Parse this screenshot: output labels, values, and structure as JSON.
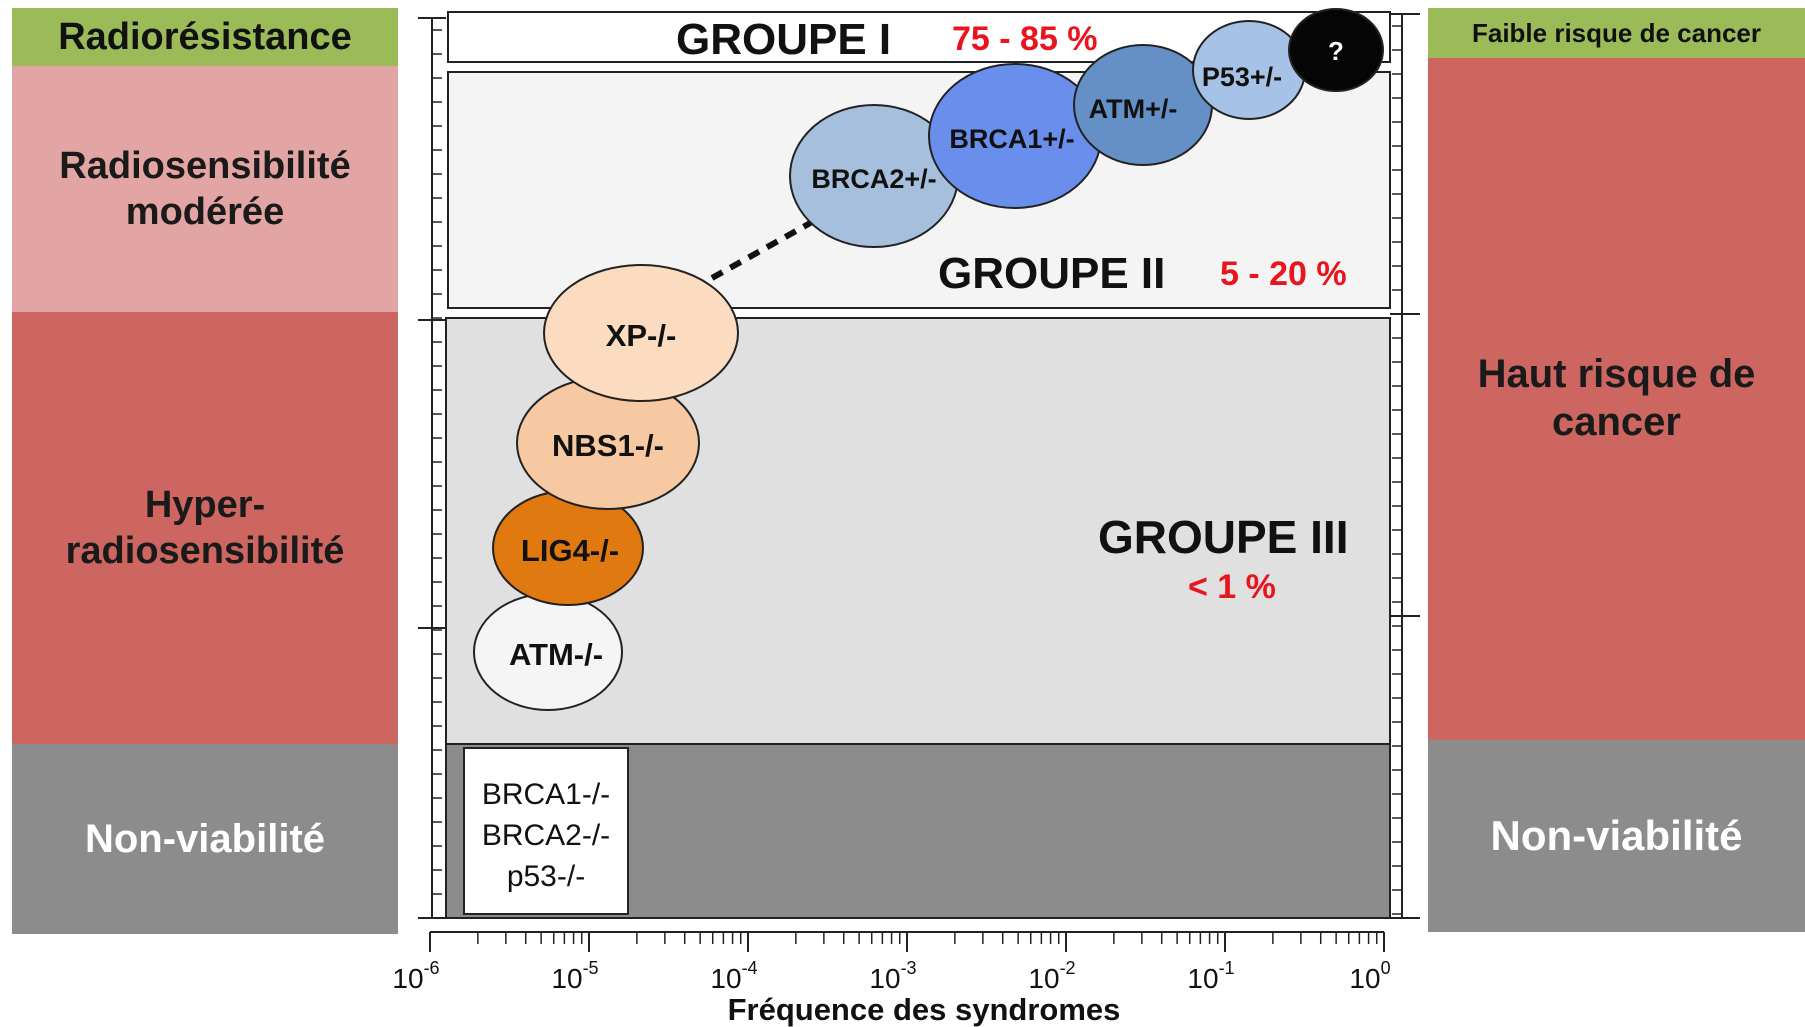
{
  "left_labels": {
    "resistance": "Radiorésistance",
    "moderate_line1": "Radiosensibilité",
    "moderate_line2": "modérée",
    "hyper_line1": "Hyper-",
    "hyper_line2": "radiosensibilité",
    "nonviable": "Non-viabilité"
  },
  "right_labels": {
    "low_risk": "Faible risque de cancer",
    "high_risk_line1": "Haut risque de",
    "high_risk_line2": "cancer",
    "nonviable": "Non-viabilité"
  },
  "groups": {
    "g1": {
      "name": "GROUPE I",
      "pct": "75 - 85 %"
    },
    "g2": {
      "name": "GROUPE II",
      "pct": "5 - 20 %"
    },
    "g3": {
      "name": "GROUPE III",
      "pct": "< 1 %"
    }
  },
  "ellipses": {
    "q": "?",
    "p53_het": "P53+/-",
    "atm_het": "ATM+/-",
    "brca1_het": "BRCA1+/-",
    "brca2_het": "BRCA2+/-",
    "xp": "XP-/-",
    "nbs1": "NBS1-/-",
    "lig4": "LIG4-/-",
    "atm_hom": "ATM-/-"
  },
  "nonviable_box": {
    "line1": "BRCA1-/-",
    "line2": "BRCA2-/-",
    "line3": "p53-/-"
  },
  "x_axis": {
    "tick_base": "10",
    "tick_exponents": [
      "-6",
      "-5",
      "-4",
      "-3",
      "-2",
      "-1",
      "0"
    ],
    "title": "Fréquence des syndromes"
  },
  "colors": {
    "green": "#9bbb59",
    "pink": "#e3a5a3",
    "red": "#cd6660",
    "gray": "#8c8c8c",
    "accent_red": "#e8141e"
  }
}
